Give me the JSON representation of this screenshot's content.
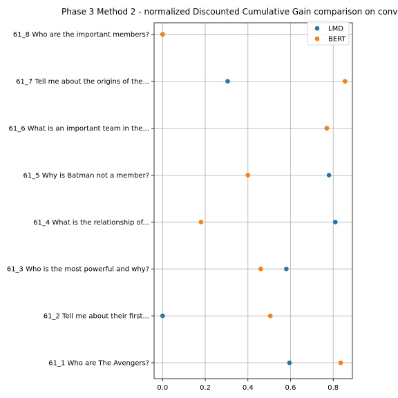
{
  "chart_data": {
    "type": "scatter",
    "title": "Phase 3 Method 2 - normalized Discounted Cumulative Gain comparison on conv",
    "xlabel": "",
    "ylabel": "",
    "xlim": [
      -0.04,
      0.89
    ],
    "xticks": [
      "0.0",
      "0.2",
      "0.4",
      "0.6",
      "0.8"
    ],
    "grid": true,
    "legend_position": "top-right",
    "categories": [
      "61_1 Who are The Avengers?",
      "61_2 Tell me about their first...",
      "61_3 Who is the most powerful and why?",
      "61_4 What is the relationship of...",
      "61_5 Why is Batman not a member?",
      "61_6 What is an important team in the...",
      "61_7 Tell me about the origins of the...",
      "61_8 Who are the important members?"
    ],
    "series": [
      {
        "name": "LMD",
        "color": "#1f77b4",
        "values": [
          0.595,
          0.0,
          0.58,
          0.81,
          0.78,
          0.77,
          0.305,
          0.0
        ]
      },
      {
        "name": "BERT",
        "color": "#ff7f0e",
        "values": [
          0.835,
          0.505,
          0.46,
          0.18,
          0.4,
          0.77,
          0.855,
          0.0
        ]
      }
    ]
  }
}
